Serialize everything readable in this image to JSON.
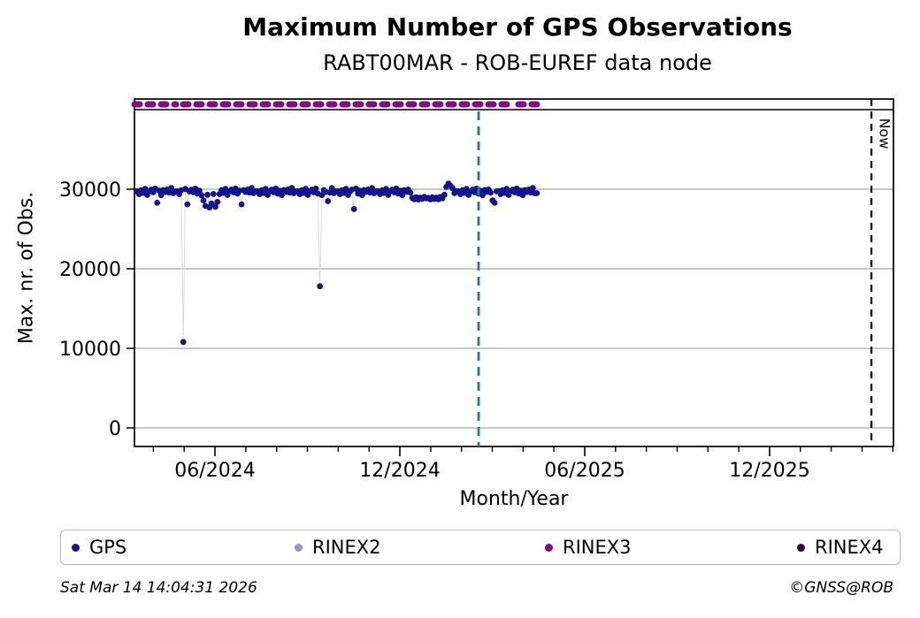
{
  "title": "Maximum Number of GPS Observations",
  "subtitle": "RABT00MAR - ROB-EUREF data node",
  "footer": {
    "timestamp": "Sat Mar 14 14:04:31 2026",
    "credit": "©GNSS@ROB"
  },
  "legend": [
    {
      "label": "GPS",
      "color": "#14148f"
    },
    {
      "label": "RINEX2",
      "color": "#9494ce"
    },
    {
      "label": "RINEX3",
      "color": "#850b85"
    },
    {
      "label": "RINEX4",
      "color": "#2b0b2b"
    }
  ],
  "chart_data": {
    "type": "scatter",
    "title": "Maximum Number of GPS Observations",
    "subtitle": "RABT00MAR - ROB-EUREF data node",
    "xlabel": "Month/Year",
    "ylabel": "Max. nr. of Obs.",
    "grid": true,
    "y_axis": {
      "ticks": [
        0,
        10000,
        20000,
        30000
      ],
      "ylim": [
        -2333,
        41333
      ]
    },
    "x_axis": {
      "range_note": "time axis from mid-March 2024 to early April 2026, f = fraction across plot width",
      "major_ticks": [
        {
          "f": 0.1061,
          "label": "06/2024"
        },
        {
          "f": 0.3497,
          "label": "12/2024"
        },
        {
          "f": 0.5932,
          "label": "06/2025"
        },
        {
          "f": 0.8368,
          "label": "12/2025"
        }
      ],
      "minor_ticks_f": [
        0.0249,
        0.0655,
        0.1467,
        0.1873,
        0.2279,
        0.2685,
        0.3091,
        0.3903,
        0.4309,
        0.4715,
        0.5121,
        0.5526,
        0.6338,
        0.6744,
        0.715,
        0.7556,
        0.7962,
        0.8774,
        0.918,
        0.9586,
        0.9992
      ]
    },
    "markers": {
      "now_label": "Now",
      "now_f": 0.971,
      "now_color": "#000000",
      "last_obs_f": 0.4534,
      "last_obs_color": "#1f77b4"
    },
    "availability": {
      "name": "RINEX3",
      "color": "#850b85",
      "segments_f": [
        [
          0.0,
          0.0548
        ],
        [
          0.0641,
          0.4965
        ],
        [
          0.5058,
          0.5303
        ]
      ]
    },
    "notable_points": [
      {
        "f": 0.0644,
        "value": 10800
      },
      {
        "f": 0.2443,
        "value": 17800
      },
      {
        "f": 0.2893,
        "value": 27500
      },
      {
        "f": 0.4136,
        "value": 30700
      }
    ],
    "series": [
      {
        "name": "GPS",
        "color": "#14148f",
        "line_color": "#d6d6ea",
        "f_start": 0.0035,
        "f_step": 0.002646,
        "values": [
          29750,
          29380,
          29880,
          29540,
          30030,
          29280,
          29720,
          29950,
          29610,
          30080,
          28300,
          29810,
          29260,
          29890,
          29660,
          29960,
          29580,
          30140,
          29500,
          29730,
          29750,
          29380,
          29880,
          10800,
          30030,
          28100,
          29720,
          29950,
          29610,
          30080,
          29440,
          29810,
          29260,
          28600,
          27900,
          29300,
          27700,
          28200,
          29400,
          27800,
          28400,
          29380,
          29880,
          29540,
          30030,
          29280,
          29720,
          29950,
          29610,
          30080,
          29440,
          29810,
          28100,
          29890,
          29660,
          29960,
          29580,
          30140,
          29500,
          29730,
          29750,
          29380,
          29880,
          29540,
          30030,
          29280,
          29720,
          29950,
          29610,
          30080,
          29440,
          29810,
          29260,
          29890,
          29660,
          29960,
          29580,
          30140,
          29500,
          29730,
          29750,
          29380,
          29880,
          29540,
          30030,
          29280,
          29720,
          29950,
          29610,
          30080,
          29440,
          17800,
          29260,
          29890,
          29660,
          28500,
          29580,
          30140,
          29500,
          29730,
          29750,
          29380,
          29880,
          29540,
          30030,
          29280,
          29720,
          29950,
          27500,
          30080,
          29440,
          29810,
          29260,
          29890,
          29660,
          29960,
          29580,
          30140,
          29500,
          29730,
          29750,
          29380,
          29880,
          29540,
          30030,
          29280,
          29720,
          29950,
          29610,
          30080,
          29440,
          29810,
          29260,
          29890,
          29660,
          29960,
          29580,
          28900,
          28750,
          29000,
          28700,
          28950,
          28800,
          29050,
          28850,
          28900,
          28720,
          28980,
          28780,
          28940,
          28740,
          29020,
          28840,
          29300,
          30300,
          30700,
          30450,
          30140,
          29500,
          29730,
          29750,
          29380,
          29880,
          29540,
          30030,
          29280,
          29720,
          29950,
          29610,
          30080,
          29440,
          29810,
          29260,
          29890,
          29660,
          29960,
          29580,
          28600,
          28300,
          29730,
          29750,
          29380,
          29880,
          29540,
          30030,
          29280,
          29720,
          29950,
          29610,
          30080,
          29440,
          29810,
          29260,
          29890,
          29660,
          29960,
          29580,
          30140,
          29500,
          29500
        ]
      }
    ]
  }
}
